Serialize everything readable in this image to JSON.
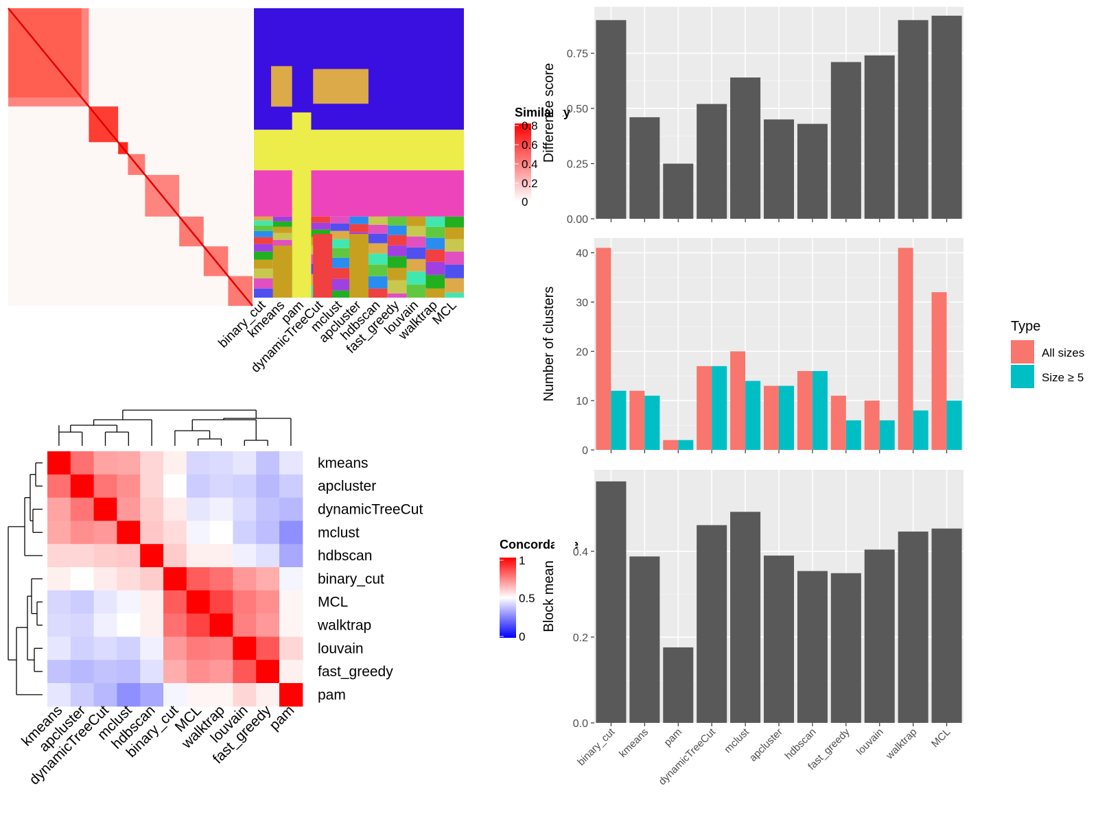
{
  "methods_order": [
    "binary_cut",
    "kmeans",
    "pam",
    "dynamicTreeCut",
    "mclust",
    "apcluster",
    "hdbscan",
    "fast_greedy",
    "louvain",
    "walktrap",
    "MCL"
  ],
  "similarity_heatmap": {
    "legend_title": "Similarity",
    "legend_ticks": [
      "0.8",
      "0.6",
      "0.4",
      "0.2",
      "0"
    ]
  },
  "class_heatmap": {
    "columns": [
      "binary_cut",
      "kmeans",
      "pam",
      "dynamicTreeCut",
      "mclust",
      "apcluster",
      "hdbscan",
      "fast_greedy",
      "louvain",
      "walktrap",
      "MCL"
    ]
  },
  "concordance_heatmap": {
    "legend_title": "Concordance",
    "legend_ticks": [
      "1",
      "0.5",
      "0"
    ],
    "row_labels": [
      "kmeans",
      "apcluster",
      "dynamicTreeCut",
      "mclust",
      "hdbscan",
      "binary_cut",
      "MCL",
      "walktrap",
      "louvain",
      "fast_greedy",
      "pam"
    ],
    "col_labels": [
      "kmeans",
      "apcluster",
      "dynamicTreeCut",
      "mclust",
      "hdbscan",
      "binary_cut",
      "MCL",
      "walktrap",
      "louvain",
      "fast_greedy",
      "pam"
    ],
    "matrix": [
      [
        1.0,
        0.78,
        0.68,
        0.67,
        0.58,
        0.53,
        0.42,
        0.43,
        0.45,
        0.38,
        0.45
      ],
      [
        0.78,
        1.0,
        0.77,
        0.72,
        0.58,
        0.5,
        0.4,
        0.42,
        0.41,
        0.36,
        0.4
      ],
      [
        0.68,
        0.77,
        1.0,
        0.7,
        0.6,
        0.54,
        0.45,
        0.47,
        0.43,
        0.38,
        0.36
      ],
      [
        0.67,
        0.72,
        0.7,
        1.0,
        0.61,
        0.57,
        0.48,
        0.5,
        0.41,
        0.37,
        0.28
      ],
      [
        0.58,
        0.58,
        0.6,
        0.61,
        1.0,
        0.6,
        0.53,
        0.53,
        0.47,
        0.44,
        0.33
      ],
      [
        0.53,
        0.5,
        0.54,
        0.57,
        0.6,
        1.0,
        0.82,
        0.78,
        0.7,
        0.66,
        0.48
      ],
      [
        0.42,
        0.4,
        0.45,
        0.48,
        0.53,
        0.82,
        1.0,
        0.87,
        0.76,
        0.72,
        0.52
      ],
      [
        0.43,
        0.42,
        0.47,
        0.5,
        0.53,
        0.78,
        0.87,
        1.0,
        0.75,
        0.7,
        0.52
      ],
      [
        0.45,
        0.41,
        0.43,
        0.41,
        0.47,
        0.7,
        0.76,
        0.75,
        1.0,
        0.83,
        0.58
      ],
      [
        0.38,
        0.36,
        0.38,
        0.37,
        0.44,
        0.66,
        0.72,
        0.7,
        0.83,
        1.0,
        0.53
      ],
      [
        0.45,
        0.4,
        0.36,
        0.28,
        0.33,
        0.48,
        0.52,
        0.52,
        0.58,
        0.53,
        1.0
      ]
    ]
  },
  "chart_data": [
    {
      "type": "bar",
      "categories": [
        "binary_cut",
        "kmeans",
        "pam",
        "dynamicTreeCut",
        "mclust",
        "apcluster",
        "hdbscan",
        "fast_greedy",
        "louvain",
        "walktrap",
        "MCL"
      ],
      "values": [
        0.9,
        0.46,
        0.25,
        0.52,
        0.64,
        0.45,
        0.43,
        0.71,
        0.74,
        0.9,
        0.92
      ],
      "ylabel": "Difference score",
      "ylim": [
        0,
        0.96
      ],
      "yticks": [
        0,
        0.25,
        0.5,
        0.75
      ],
      "ytick_labels": [
        "0.00",
        "0.25",
        "0.50",
        "0.75"
      ],
      "color": "#595959"
    },
    {
      "type": "bar",
      "categories": [
        "binary_cut",
        "kmeans",
        "pam",
        "dynamicTreeCut",
        "mclust",
        "apcluster",
        "hdbscan",
        "fast_greedy",
        "louvain",
        "walktrap",
        "MCL"
      ],
      "series": [
        {
          "name": "All sizes",
          "values": [
            41,
            12,
            2,
            17,
            20,
            13,
            16,
            11,
            10,
            41,
            32
          ],
          "color": "#F8766D"
        },
        {
          "name": "Size ≥ 5",
          "values": [
            12,
            11,
            2,
            17,
            14,
            13,
            16,
            6,
            6,
            8,
            10
          ],
          "color": "#00BFC4"
        }
      ],
      "ylabel": "Number of clusters",
      "ylim": [
        0,
        43
      ],
      "yticks": [
        0,
        10,
        20,
        30,
        40
      ],
      "ytick_labels": [
        "0",
        "10",
        "20",
        "30",
        "40"
      ],
      "legend": {
        "title": "Type",
        "placement": "right"
      }
    },
    {
      "type": "bar",
      "categories": [
        "binary_cut",
        "kmeans",
        "pam",
        "dynamicTreeCut",
        "mclust",
        "apcluster",
        "hdbscan",
        "fast_greedy",
        "louvain",
        "walktrap",
        "MCL"
      ],
      "values": [
        0.563,
        0.388,
        0.176,
        0.461,
        0.492,
        0.39,
        0.354,
        0.349,
        0.404,
        0.446,
        0.453
      ],
      "ylabel": "Block mean",
      "ylim": [
        0,
        0.59
      ],
      "yticks": [
        0,
        0.2,
        0.4
      ],
      "ytick_labels": [
        "0.0",
        "0.2",
        "0.4"
      ],
      "color": "#595959"
    }
  ]
}
